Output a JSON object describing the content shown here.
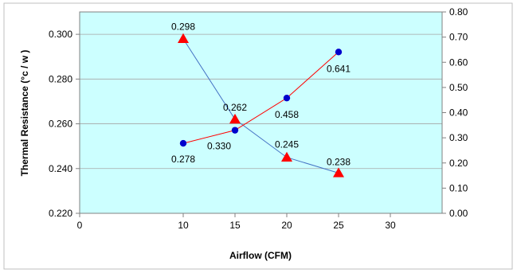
{
  "chart_data": {
    "type": "line",
    "xlabel": "Airflow (CFM)",
    "ylabel": "Thermal Resistance (°c / w )",
    "y2label": "",
    "xlim": [
      0,
      35
    ],
    "ylim": [
      0.22,
      0.31
    ],
    "y2lim": [
      0.0,
      0.8
    ],
    "x_ticks": [
      "0",
      "10",
      "15",
      "20",
      "25",
      "30"
    ],
    "x_tick_values": [
      0,
      10,
      15,
      20,
      25,
      30
    ],
    "y_ticks": [
      "0.220",
      "0.240",
      "0.260",
      "0.280",
      "0.300"
    ],
    "y_tick_values": [
      0.22,
      0.24,
      0.26,
      0.28,
      0.3
    ],
    "y2_ticks": [
      "0.00",
      "0.10",
      "0.20",
      "0.30",
      "0.40",
      "0.50",
      "0.60",
      "0.70",
      "0.80"
    ],
    "y2_tick_values": [
      0.0,
      0.1,
      0.2,
      0.3,
      0.4,
      0.5,
      0.6,
      0.7,
      0.8
    ],
    "grid": true,
    "legend": "none",
    "plot_bg": "#ccffff",
    "series": [
      {
        "axis": "left",
        "marker": "triangle",
        "marker_color": "#ff0000",
        "line_color": "#4472c4",
        "x": [
          10,
          15,
          20,
          25
        ],
        "values": [
          0.298,
          0.262,
          0.245,
          0.238
        ],
        "labels": [
          "0.298",
          "0.262",
          "0.245",
          "0.238"
        ]
      },
      {
        "axis": "right",
        "marker": "circle",
        "marker_color": "#0000cc",
        "line_color": "#ff0000",
        "x": [
          10,
          15,
          20,
          25
        ],
        "values": [
          0.278,
          0.33,
          0.458,
          0.641
        ],
        "labels": [
          "0.278",
          "0.330",
          "0.458",
          "0.641"
        ]
      }
    ]
  }
}
